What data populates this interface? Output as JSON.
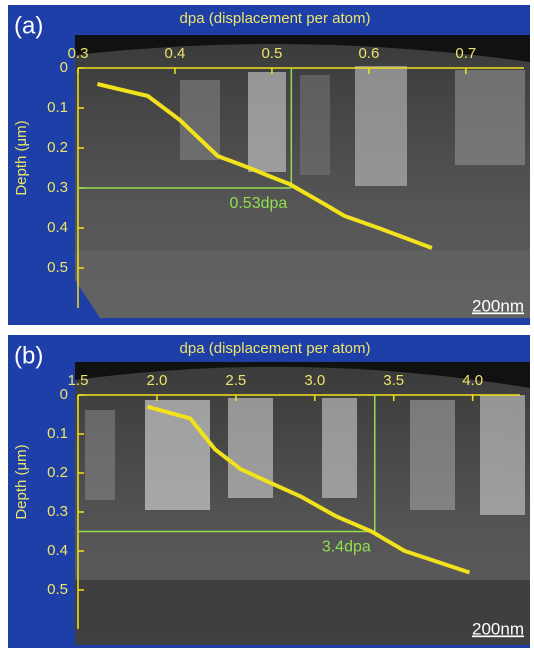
{
  "chart_data": [
    {
      "type": "line",
      "panel_label": "(a)",
      "title": "dpa (displacement per atom)",
      "y_label": "Depth (μm)",
      "scale_bar": "200nm",
      "x": [
        0.32,
        0.372,
        0.405,
        0.444,
        0.477,
        0.497,
        0.518,
        0.554,
        0.575,
        0.61,
        0.665
      ],
      "values": [
        0.04,
        0.07,
        0.13,
        0.22,
        0.25,
        0.27,
        0.29,
        0.34,
        0.37,
        0.4,
        0.45
      ],
      "color": "#f2e21c",
      "xlim": [
        0.3,
        0.76
      ],
      "ylim": [
        0,
        0.6
      ],
      "xticks": [
        0.3,
        0.4,
        0.5,
        0.6,
        0.7
      ],
      "yticks": [
        0,
        0.1,
        0.2,
        0.3,
        0.4,
        0.5
      ],
      "guide": {
        "x": 0.52,
        "y": 0.3,
        "color": "#8fe050"
      },
      "annotation": "0.53dpa"
    },
    {
      "type": "line",
      "panel_label": "(b)",
      "title": "dpa (displacement per atom)",
      "y_label": "Depth (μm)",
      "scale_bar": "200nm",
      "x": [
        1.94,
        2.21,
        2.37,
        2.53,
        2.69,
        2.91,
        3.13,
        3.36,
        3.57,
        3.98
      ],
      "values": [
        0.03,
        0.06,
        0.14,
        0.19,
        0.22,
        0.26,
        0.31,
        0.35,
        0.4,
        0.455
      ],
      "color": "#f2e21c",
      "xlim": [
        1.5,
        4.3
      ],
      "ylim": [
        0,
        0.6
      ],
      "xticks": [
        1.5,
        {
          "value": 2,
          "label": "2.0"
        },
        2.5,
        {
          "value": 3,
          "label": "3.0"
        },
        3.5,
        {
          "value": 4,
          "label": "4.0"
        }
      ],
      "yticks": [
        0,
        0.1,
        0.2,
        0.3,
        0.4,
        0.5
      ],
      "guide": {
        "x": 3.38,
        "y": 0.35,
        "color": "#8fe050"
      },
      "annotation": "3.4dpa"
    }
  ]
}
